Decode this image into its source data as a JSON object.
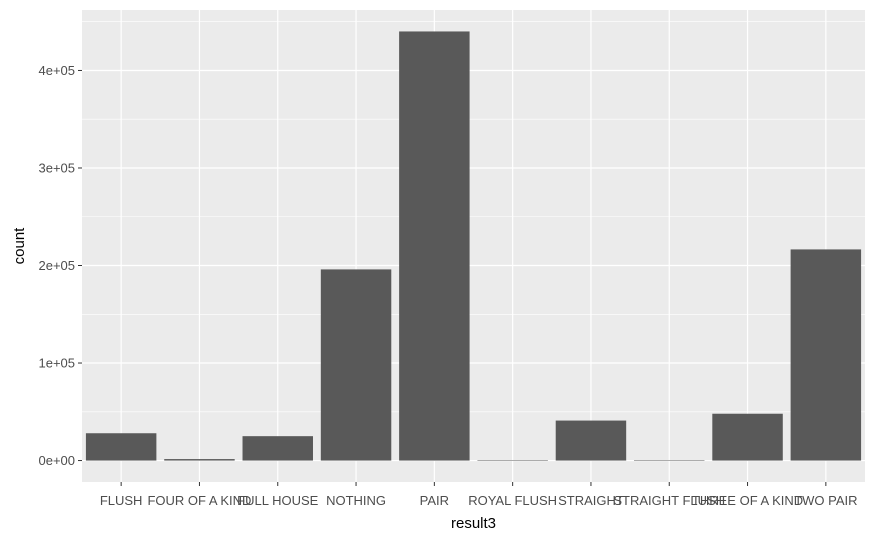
{
  "chart_data": {
    "type": "bar",
    "xlabel": "result3",
    "ylabel": "count",
    "categories": [
      "FLUSH",
      "FOUR OF A KIND",
      "FULL HOUSE",
      "NOTHING",
      "PAIR",
      "ROYAL FLUSH",
      "STRAIGHT",
      "STRAIGHT FLUSH",
      "THREE OF A KIND",
      "TWO PAIR"
    ],
    "values": [
      28000,
      1500,
      25000,
      196000,
      440000,
      100,
      41000,
      400,
      48000,
      216500
    ],
    "ylim": [
      -22000,
      462000
    ],
    "yticks": [
      0,
      100000,
      200000,
      300000,
      400000
    ],
    "ytick_labels": [
      "0e+00",
      "1e+05",
      "2e+05",
      "3e+05",
      "4e+05"
    ],
    "grid": true,
    "colors": {
      "panel": "#ebebeb",
      "bar": "#595959",
      "grid": "#ffffff"
    }
  }
}
